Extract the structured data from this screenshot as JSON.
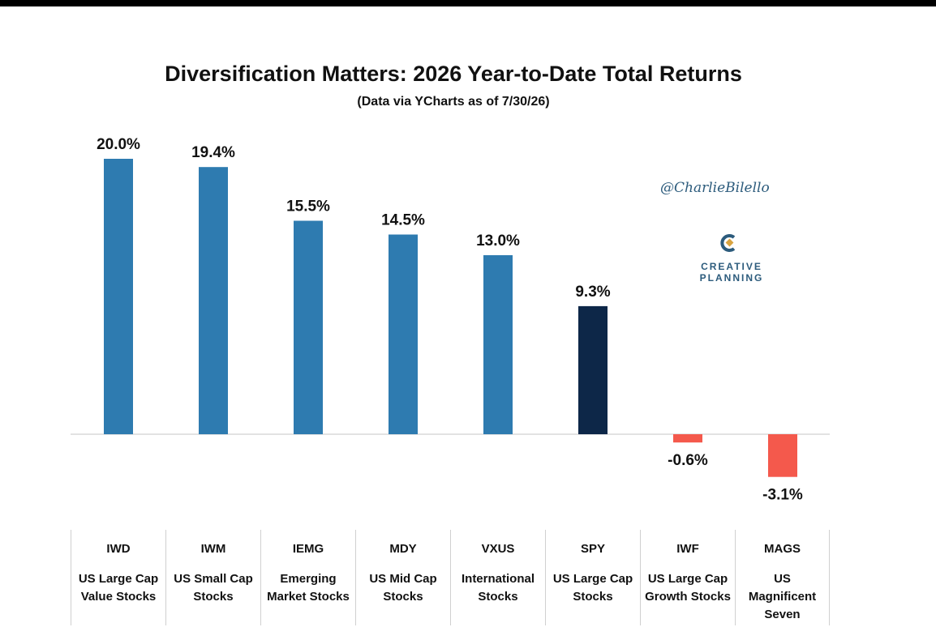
{
  "chart_data": {
    "type": "bar",
    "title": "Diversification Matters: 2026 Year-to-Date Total Returns",
    "subtitle": "(Data via YCharts as of 7/30/26)",
    "categories": [
      "IWD",
      "IWM",
      "IEMG",
      "MDY",
      "VXUS",
      "SPY",
      "IWF",
      "MAGS"
    ],
    "category_descriptions": [
      "US Large Cap\nValue Stocks",
      "US Small Cap\nStocks",
      "Emerging\nMarket Stocks",
      "US Mid Cap\nStocks",
      "International\nStocks",
      "US Large Cap\nStocks",
      "US Large Cap\nGrowth Stocks",
      "US\nMagnificent\nSeven"
    ],
    "values": [
      20.0,
      19.4,
      15.5,
      14.5,
      13.0,
      9.3,
      -0.6,
      -3.1
    ],
    "value_labels": [
      "20.0%",
      "19.4%",
      "15.5%",
      "14.5%",
      "13.0%",
      "9.3%",
      "-0.6%",
      "-3.1%"
    ],
    "bar_colors": [
      "#2e7bb0",
      "#2e7bb0",
      "#2e7bb0",
      "#2e7bb0",
      "#2e7bb0",
      "#0d2748",
      "#f4594c",
      "#f4594c"
    ],
    "ylim": [
      -5,
      20
    ],
    "xlabel": "",
    "ylabel": "",
    "grid": false,
    "legend": "none"
  },
  "branding": {
    "handle": "@CharlieBilello",
    "logo_icon": "creative-planning-logo-icon",
    "logo_line1": "CREATIVE",
    "logo_line2": "PLANNING"
  },
  "colors": {
    "positive": "#2e7bb0",
    "highlight": "#0d2748",
    "negative": "#f4594c",
    "brand": "#2c5b7c"
  }
}
